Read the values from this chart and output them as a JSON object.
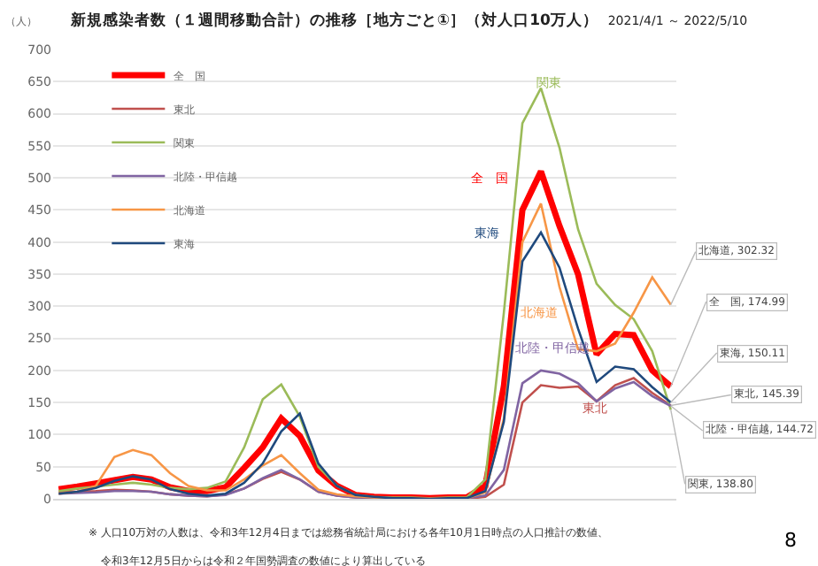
{
  "chart_data": {
    "type": "line",
    "title": "新規感染者数（１週間移動合計）の推移［地方ごと①］（対人口10万人）",
    "subtitle": "2021/4/1 ～ 2022/5/10",
    "ylabel": "（人）",
    "categories": [
      null,
      null,
      null,
      null,
      null,
      null,
      null,
      null,
      null,
      null,
      null,
      null,
      null,
      null,
      null,
      null,
      null,
      null,
      null,
      null,
      null,
      null,
      null,
      null,
      null,
      null,
      null,
      null,
      null,
      null,
      null,
      null,
      null,
      null
    ],
    "series": [
      {
        "name": "全　国",
        "color": "#ff0000",
        "values": [
          15,
          19,
          24,
          29,
          34,
          30,
          18,
          12,
          12,
          18,
          48,
          80,
          125,
          98,
          44,
          20,
          6,
          3,
          2,
          2,
          1,
          2,
          2,
          20,
          175,
          450,
          510,
          425,
          350,
          225,
          257,
          255,
          200,
          174.99
        ]
      },
      {
        "name": "東北",
        "color": "#c0504d",
        "values": [
          10,
          11,
          12,
          14,
          13,
          11,
          7,
          5,
          4,
          7,
          16,
          31,
          42,
          30,
          11,
          5,
          2,
          2,
          1,
          1,
          0,
          0,
          0,
          3,
          22,
          150,
          177,
          173,
          175,
          152,
          177,
          188,
          165,
          145.39
        ]
      },
      {
        "name": "関東",
        "color": "#9bbb59",
        "values": [
          12,
          16,
          19,
          22,
          25,
          22,
          17,
          15,
          17,
          27,
          80,
          155,
          178,
          128,
          50,
          20,
          6,
          3,
          2,
          2,
          1,
          2,
          2,
          30,
          290,
          585,
          640,
          547,
          420,
          335,
          302,
          280,
          230,
          138.8
        ]
      },
      {
        "name": "北陸・甲信越",
        "color": "#8064a2",
        "values": [
          8,
          9,
          10,
          12,
          12,
          11,
          7,
          5,
          4,
          6,
          16,
          32,
          45,
          30,
          11,
          5,
          2,
          2,
          1,
          1,
          0,
          1,
          1,
          5,
          45,
          180,
          200,
          195,
          180,
          152,
          172,
          182,
          160,
          144.72
        ]
      },
      {
        "name": "北海道",
        "color": "#f79646",
        "values": [
          8,
          11,
          20,
          65,
          76,
          68,
          40,
          20,
          13,
          13,
          30,
          52,
          68,
          40,
          14,
          7,
          4,
          2,
          1,
          1,
          1,
          1,
          1,
          10,
          125,
          400,
          460,
          330,
          233,
          230,
          242,
          290,
          345,
          302.32
        ]
      },
      {
        "name": "東海",
        "color": "#1f497d",
        "values": [
          8,
          11,
          17,
          28,
          35,
          30,
          15,
          8,
          5,
          8,
          25,
          55,
          105,
          133,
          55,
          20,
          6,
          3,
          1,
          1,
          0,
          1,
          1,
          12,
          120,
          370,
          415,
          360,
          265,
          182,
          206,
          202,
          174,
          150.11
        ]
      }
    ],
    "ylim": [
      0,
      700
    ],
    "yticks": [
      0,
      50,
      100,
      150,
      200,
      250,
      300,
      350,
      400,
      450,
      500,
      550,
      600,
      650,
      700
    ],
    "grid": "y",
    "legend": "top left",
    "tick_labels": "y",
    "marker": "none",
    "line_style": "solid",
    "annotations": [
      "関東",
      "全　国",
      "東海",
      "北海道",
      "北陸・甲信越",
      "東北",
      "北海道, 302.32",
      "全　国, 174.99",
      "東海, 150.11",
      "東北, 145.39",
      "北陸・甲信越, 144.72",
      "関東, 138.80",
      "※ 人口10万対の人数は、令和3年12月4日までは総務省統計局における各年10月1日時点の人口推計の数値、",
      "令和3年12月5日からは令和２年国勢調査の数値により算出している",
      "8"
    ]
  }
}
